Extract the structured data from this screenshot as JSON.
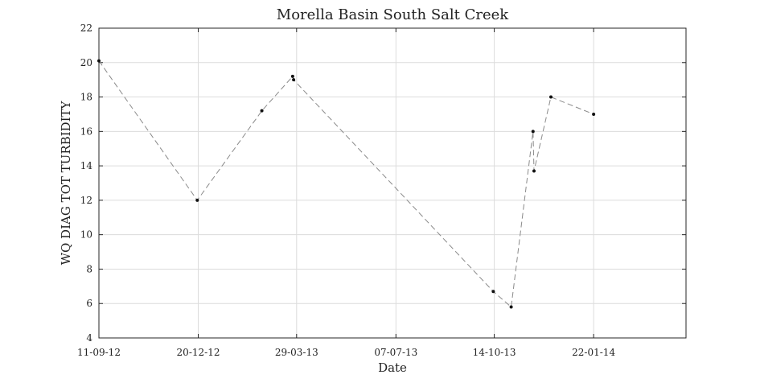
{
  "chart_data": {
    "type": "line",
    "title": "Morella Basin South Salt Creek",
    "xlabel": "Date",
    "ylabel": "WQ DIAG TOT TURBIDITY",
    "x_ticks": [
      "11-09-12",
      "20-12-12",
      "29-03-13",
      "07-07-13",
      "14-10-13",
      "22-01-14"
    ],
    "xlim": [
      "2012-09-11",
      "2014-04-25"
    ],
    "ylim": [
      4,
      22
    ],
    "y_ticks": [
      4,
      6,
      8,
      10,
      12,
      14,
      16,
      18,
      20,
      22
    ],
    "grid": true,
    "series": [
      {
        "x": [
          "2012-09-11",
          "2012-12-19",
          "2013-02-22",
          "2013-03-25",
          "2013-03-26",
          "2013-10-13",
          "2013-10-31",
          "2013-11-22",
          "2013-11-23",
          "2013-12-10",
          "2014-01-22"
        ],
        "y": [
          20.1,
          12.0,
          17.2,
          19.2,
          19.0,
          6.7,
          5.8,
          16.0,
          13.7,
          18.0,
          17.0
        ],
        "line_style": "dashed",
        "line_color": "#8a8a8a",
        "marker_color": "#111111"
      }
    ]
  }
}
